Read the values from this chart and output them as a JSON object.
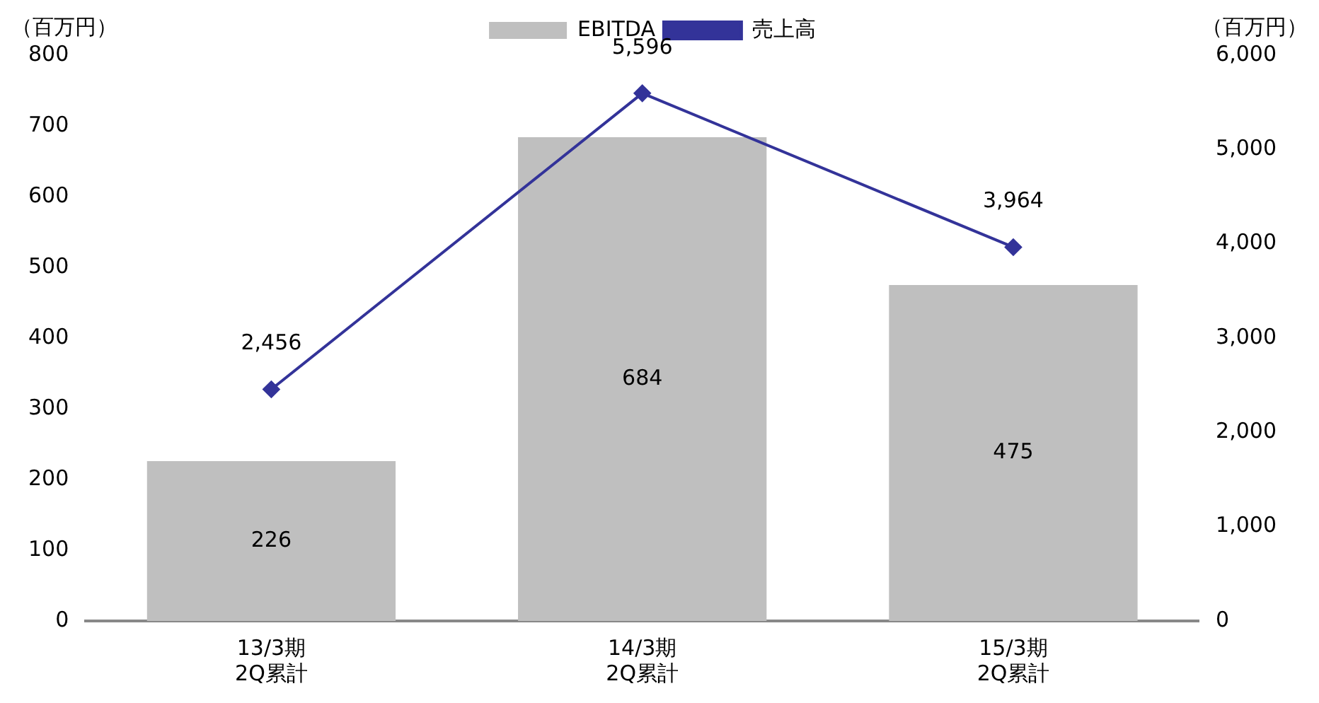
{
  "chart_data": {
    "type": "bar",
    "categories": [
      "13/3期\n2Q累計",
      "14/3期\n2Q累計",
      "15/3期\n2Q累計"
    ],
    "series": [
      {
        "name": "EBITDA",
        "color": "#bfbfbf",
        "values": [
          226,
          684,
          475
        ],
        "value_labels": [
          "226",
          "684",
          "475"
        ]
      },
      {
        "name": "売上高",
        "type": "line",
        "axis": "y2",
        "color": "#333399",
        "values": [
          2456,
          5596,
          3964
        ],
        "value_labels": [
          "2,456",
          "5,596",
          "3,964"
        ]
      }
    ],
    "ylabel": "（百万円）",
    "y2label": "（百万円）",
    "ylim": [
      0,
      800
    ],
    "yticks": [
      0,
      100,
      200,
      300,
      400,
      500,
      600,
      700,
      800
    ],
    "y2lim": [
      0,
      6000
    ],
    "y2ticks": [
      {
        "value": 0,
        "label": "0"
      },
      {
        "value": 1000,
        "label": "1,000"
      },
      {
        "value": 2000,
        "label": "2,000"
      },
      {
        "value": 3000,
        "label": "3,000"
      },
      {
        "value": 4000,
        "label": "4,000"
      },
      {
        "value": 5000,
        "label": "5,000"
      },
      {
        "value": 6000,
        "label": "6,000"
      }
    ],
    "legend": "top",
    "grid": false,
    "marker": "diamond"
  }
}
